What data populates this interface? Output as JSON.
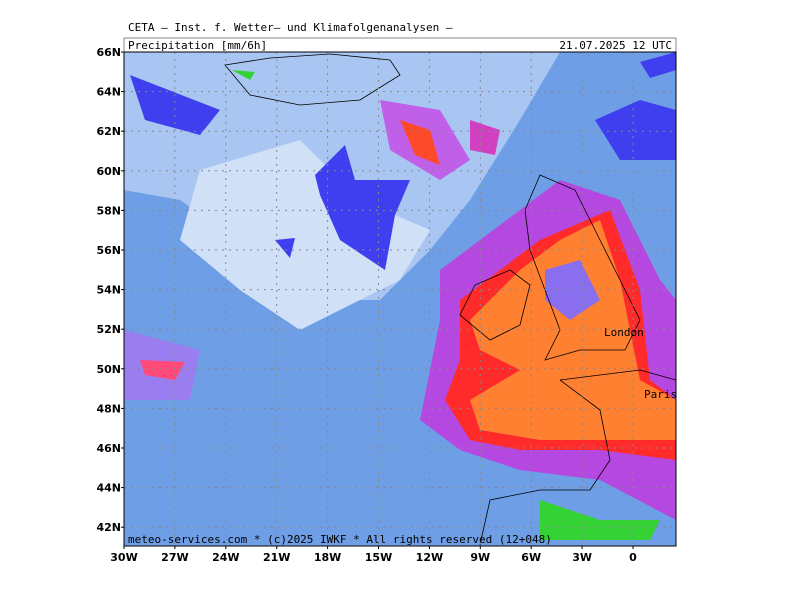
{
  "header": {
    "institute": "CETA – Inst. f. Wetter– und Klimafolgenanalysen –",
    "title": "Precipitation [mm/6h]",
    "valid_time": "21.07.2025 12 UTC"
  },
  "map": {
    "lat_labels": [
      "66N",
      "64N",
      "62N",
      "60N",
      "58N",
      "56N",
      "54N",
      "52N",
      "50N",
      "48N",
      "46N",
      "44N",
      "42N"
    ],
    "lon_labels": [
      "30W",
      "27W",
      "24W",
      "21W",
      "18W",
      "15W",
      "12W",
      "9W",
      "6W",
      "3W",
      "0"
    ],
    "places": {
      "london": "London",
      "paris": "Paris"
    }
  },
  "footer": "meteo-services.com * (c)2025 IWKF * All rights reserved (12+048)"
}
